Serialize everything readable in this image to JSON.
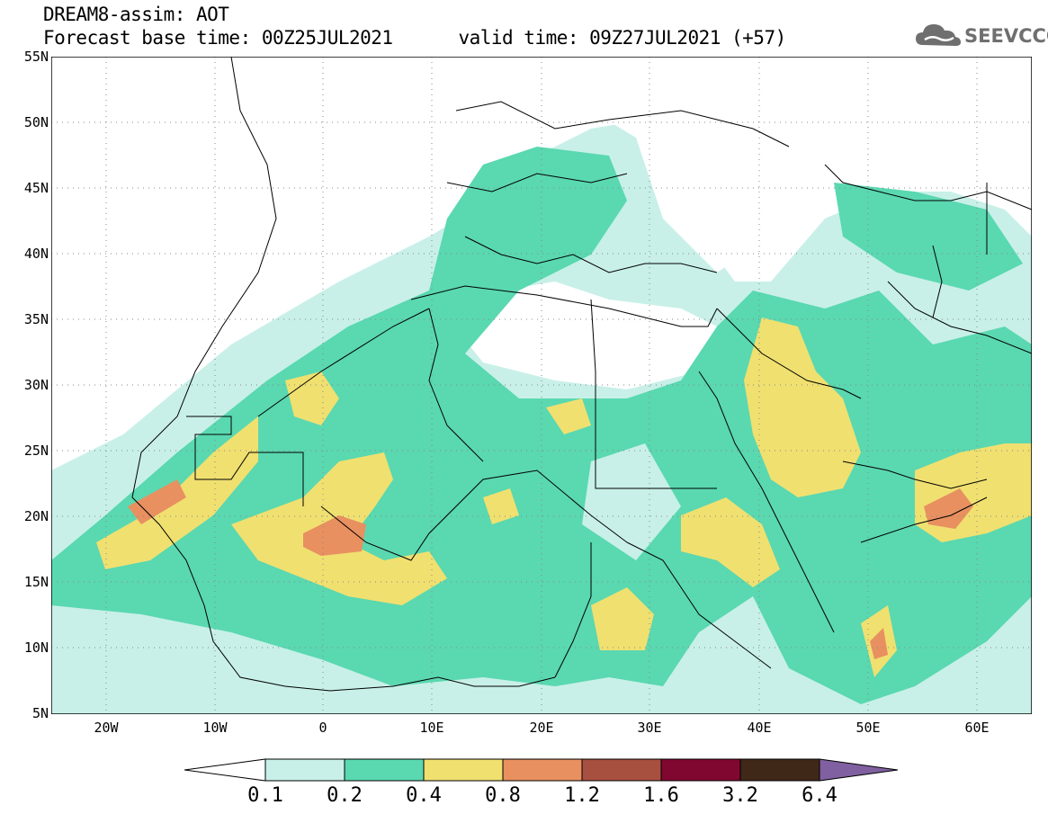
{
  "header": {
    "line1": "DREAM8-assim: AOT",
    "line2_left": "Forecast base time: 00Z25JUL2021",
    "line2_right": "valid time: 09Z27JUL2021 (+57)"
  },
  "logo": {
    "text": "SEEVCCC",
    "icon": "cloud-icon"
  },
  "map": {
    "lat_labels": [
      "55N",
      "50N",
      "45N",
      "40N",
      "35N",
      "30N",
      "25N",
      "20N",
      "15N",
      "10N",
      "5N"
    ],
    "lon_labels": [
      "20W",
      "10W",
      "0",
      "10E",
      "20E",
      "30E",
      "40E",
      "50E",
      "60E"
    ],
    "extent": {
      "lon_min": -25,
      "lon_max": 65,
      "lat_min": 5,
      "lat_max": 55
    },
    "gridlines": "dotted"
  },
  "legend": {
    "thresholds": [
      "0.1",
      "0.2",
      "0.4",
      "0.8",
      "1.2",
      "1.6",
      "3.2",
      "6.4"
    ],
    "colors": [
      "#c8f0e8",
      "#5ad8b0",
      "#f0e070",
      "#e89060",
      "#a85040",
      "#800830",
      "#402818",
      "#8060a0"
    ],
    "below_color": "#ffffff"
  }
}
